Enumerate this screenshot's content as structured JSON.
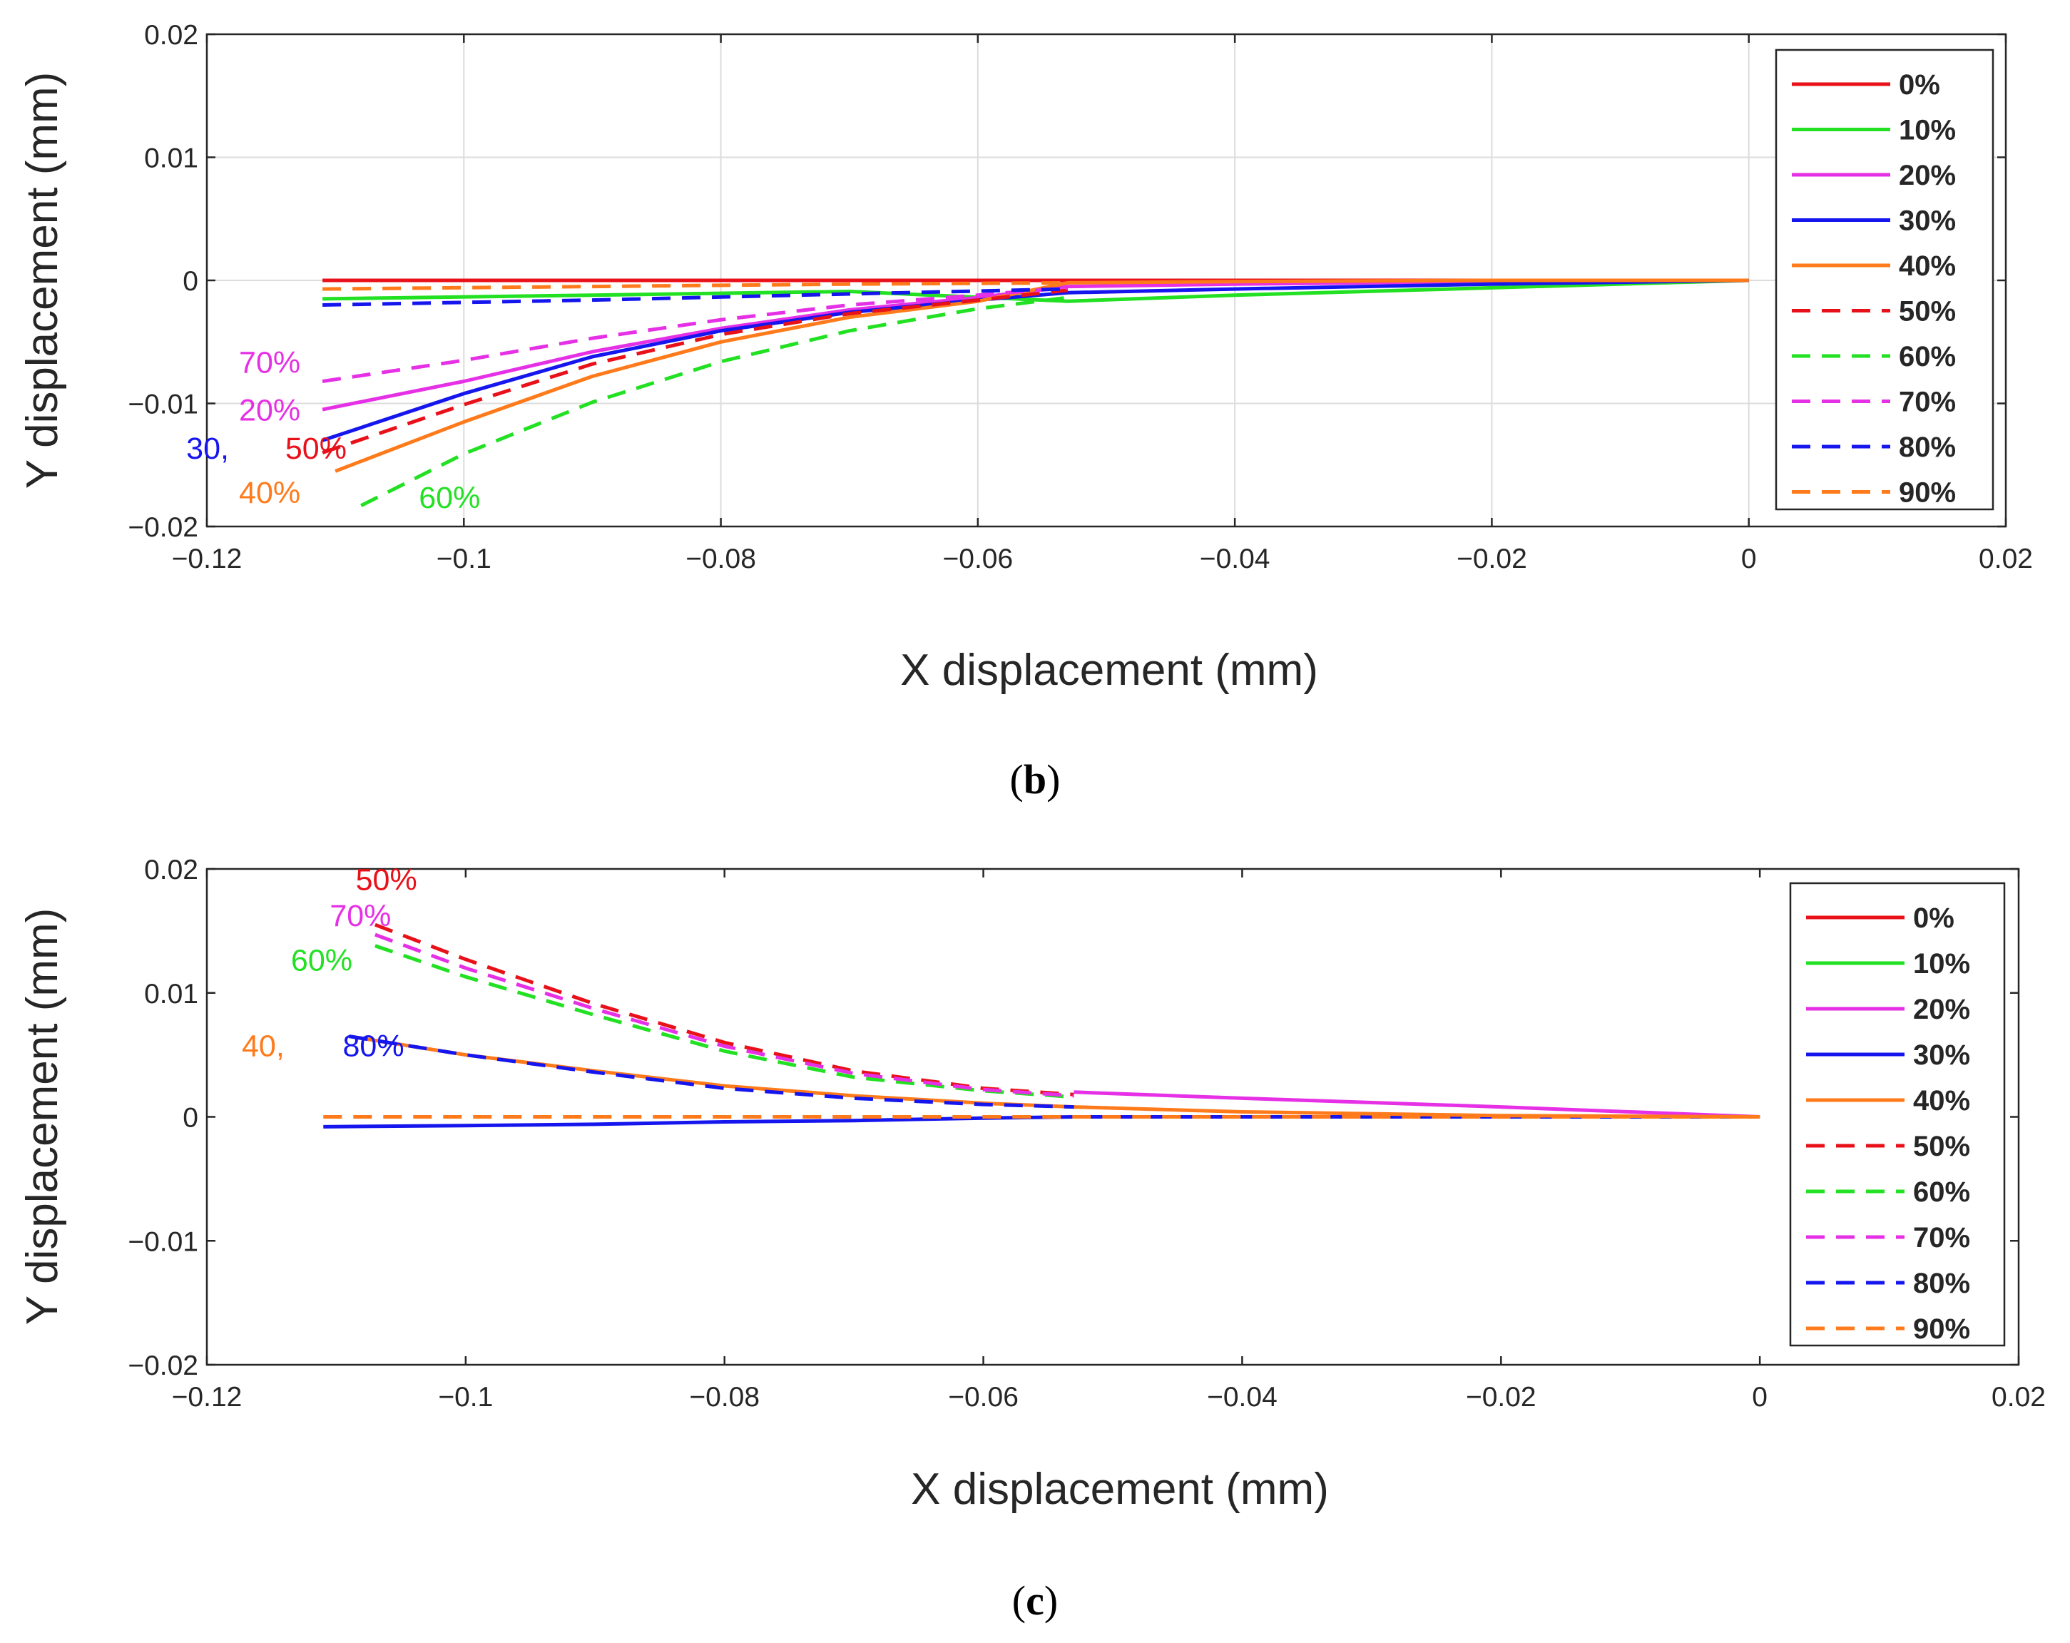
{
  "series_styles": [
    {
      "name": "0%",
      "color": "#e8111a",
      "dash": false
    },
    {
      "name": "10%",
      "color": "#22e022",
      "dash": false
    },
    {
      "name": "20%",
      "color": "#e630e6",
      "dash": false
    },
    {
      "name": "30%",
      "color": "#1515ee",
      "dash": false
    },
    {
      "name": "40%",
      "color": "#ff7a1a",
      "dash": false
    },
    {
      "name": "50%",
      "color": "#e8111a",
      "dash": true
    },
    {
      "name": "60%",
      "color": "#22e022",
      "dash": true
    },
    {
      "name": "70%",
      "color": "#e630e6",
      "dash": true
    },
    {
      "name": "80%",
      "color": "#1515ee",
      "dash": true
    },
    {
      "name": "90%",
      "color": "#ff7a1a",
      "dash": true
    }
  ],
  "chart_data": [
    {
      "id": "b",
      "type": "line",
      "caption_open": "(",
      "caption_letter": "b",
      "caption_close": ")",
      "xlabel": "X displacement (mm)",
      "ylabel": "Y displacement (mm)",
      "xlim": [
        -0.12,
        0.02
      ],
      "ylim": [
        -0.02,
        0.02
      ],
      "xticks": [
        -0.12,
        -0.1,
        -0.08,
        -0.06,
        -0.04,
        -0.02,
        0,
        0.02
      ],
      "xtick_labels": [
        "−0.12",
        "−0.1",
        "−0.08",
        "−0.06",
        "−0.04",
        "−0.02",
        "0",
        "0.02"
      ],
      "yticks": [
        -0.02,
        -0.01,
        0,
        0.01,
        0.02
      ],
      "ytick_labels": [
        "−0.02",
        "−0.01",
        "0",
        "0.01",
        "0.02"
      ],
      "grid": true,
      "legend_position": "top-right",
      "series": [
        {
          "name": "0%",
          "x": [
            -0.111,
            -0.09,
            -0.07,
            -0.053,
            -0.04,
            -0.02,
            0
          ],
          "y": [
            0.0,
            0.0,
            0.0,
            0.0,
            0.0,
            0.0,
            0.0
          ]
        },
        {
          "name": "10%",
          "x": [
            -0.111,
            -0.09,
            -0.07,
            -0.053,
            -0.04,
            -0.02,
            0
          ],
          "y": [
            -0.0015,
            -0.0012,
            -0.0009,
            -0.0017,
            -0.0012,
            -0.0006,
            0.0
          ]
        },
        {
          "name": "20%",
          "x": [
            -0.111,
            -0.1,
            -0.09,
            -0.08,
            -0.07,
            -0.06,
            -0.053,
            -0.04,
            -0.02,
            0
          ],
          "y": [
            -0.0105,
            -0.0082,
            -0.0058,
            -0.0039,
            -0.0024,
            -0.0014,
            -0.0005,
            -0.0003,
            -0.0001,
            0.0
          ]
        },
        {
          "name": "30%",
          "x": [
            -0.111,
            -0.1,
            -0.09,
            -0.08,
            -0.07,
            -0.06,
            -0.053,
            -0.04,
            -0.02,
            0
          ],
          "y": [
            -0.013,
            -0.0092,
            -0.0062,
            -0.0041,
            -0.0026,
            -0.0016,
            -0.001,
            -0.0007,
            -0.0003,
            0.0
          ]
        },
        {
          "name": "40%",
          "x": [
            -0.11,
            -0.1,
            -0.09,
            -0.08,
            -0.07,
            -0.06,
            -0.053,
            -0.04,
            -0.02,
            0
          ],
          "y": [
            -0.0155,
            -0.0115,
            -0.0078,
            -0.005,
            -0.003,
            -0.0017,
            -0.0002,
            -0.0001,
            0.0,
            0.0
          ]
        },
        {
          "name": "50%",
          "x": [
            -0.111,
            -0.1,
            -0.09,
            -0.08,
            -0.07,
            -0.06,
            -0.053
          ],
          "y": [
            -0.014,
            -0.0101,
            -0.0068,
            -0.0044,
            -0.0027,
            -0.0016,
            -0.0008
          ]
        },
        {
          "name": "60%",
          "x": [
            -0.108,
            -0.1,
            -0.09,
            -0.08,
            -0.07,
            -0.06,
            -0.053
          ],
          "y": [
            -0.0183,
            -0.0141,
            -0.0099,
            -0.0066,
            -0.0041,
            -0.0023,
            -0.0014
          ]
        },
        {
          "name": "70%",
          "x": [
            -0.111,
            -0.1,
            -0.09,
            -0.08,
            -0.07,
            -0.06,
            -0.053
          ],
          "y": [
            -0.0082,
            -0.0065,
            -0.0047,
            -0.0032,
            -0.002,
            -0.0012,
            -0.0006
          ]
        },
        {
          "name": "80%",
          "x": [
            -0.111,
            -0.09,
            -0.07,
            -0.053
          ],
          "y": [
            -0.002,
            -0.0016,
            -0.0011,
            -0.0007
          ]
        },
        {
          "name": "90%",
          "x": [
            -0.111,
            -0.09,
            -0.07,
            -0.053
          ],
          "y": [
            -0.0007,
            -0.0005,
            -0.0003,
            -0.0002
          ]
        }
      ],
      "annotations": [
        {
          "text": "70%",
          "color": "#e630e6",
          "x": -0.1175,
          "y": -0.0075
        },
        {
          "text": "20%",
          "color": "#e630e6",
          "x": -0.1175,
          "y": -0.0114
        },
        {
          "text": "30,",
          "color": "#1515ee",
          "x": -0.1216,
          "y": -0.0145
        },
        {
          "text": "50%",
          "color": "#e8111a",
          "x": -0.1139,
          "y": -0.0145
        },
        {
          "text": "40%",
          "color": "#ff7a1a",
          "x": -0.1175,
          "y": -0.0181
        },
        {
          "text": "60%",
          "color": "#22e022",
          "x": -0.1035,
          "y": -0.0185
        }
      ]
    },
    {
      "id": "c",
      "type": "line",
      "caption_open": "(",
      "caption_letter": "c",
      "caption_close": ")",
      "xlabel": "X displacement (mm)",
      "ylabel": "Y displacement (mm)",
      "xlim": [
        -0.12,
        0.02
      ],
      "ylim": [
        -0.02,
        0.02
      ],
      "xticks": [
        -0.12,
        -0.1,
        -0.08,
        -0.06,
        -0.04,
        -0.02,
        0,
        0.02
      ],
      "xtick_labels": [
        "−0.12",
        "−0.1",
        "−0.08",
        "−0.06",
        "−0.04",
        "−0.02",
        "0",
        "0.02"
      ],
      "yticks": [
        -0.02,
        -0.01,
        0,
        0.01,
        0.02
      ],
      "ytick_labels": [
        "−0.02",
        "−0.01",
        "0",
        "0.01",
        "0.02"
      ],
      "grid": false,
      "legend_position": "top-right",
      "series": [
        {
          "name": "0%",
          "x": [
            -0.053,
            -0.04,
            -0.02,
            0
          ],
          "y": [
            0.0,
            0.0,
            0.0,
            0.0
          ]
        },
        {
          "name": "10%",
          "x": [
            -0.053,
            -0.04,
            -0.02,
            0
          ],
          "y": [
            0.0,
            0.0,
            0.0,
            0.0
          ]
        },
        {
          "name": "20%",
          "x": [
            -0.053,
            -0.04,
            -0.02,
            0
          ],
          "y": [
            0.002,
            0.0015,
            0.0008,
            0.0
          ]
        },
        {
          "name": "30%",
          "x": [
            -0.111,
            -0.1,
            -0.09,
            -0.08,
            -0.07,
            -0.06,
            -0.053,
            -0.04,
            -0.02,
            0
          ],
          "y": [
            -0.0008,
            -0.0007,
            -0.0006,
            -0.0004,
            -0.0003,
            -0.0001,
            0.0,
            0.0,
            0.0,
            0.0
          ]
        },
        {
          "name": "40%",
          "x": [
            -0.109,
            -0.1,
            -0.09,
            -0.08,
            -0.07,
            -0.06,
            -0.053,
            -0.04,
            -0.02,
            0
          ],
          "y": [
            0.0065,
            0.005,
            0.0037,
            0.0025,
            0.0017,
            0.0011,
            0.0008,
            0.0004,
            0.0001,
            0.0
          ]
        },
        {
          "name": "50%",
          "x": [
            -0.107,
            -0.1,
            -0.09,
            -0.08,
            -0.07,
            -0.06,
            -0.053
          ],
          "y": [
            0.0155,
            0.0127,
            0.0091,
            0.006,
            0.0037,
            0.0023,
            0.0018
          ]
        },
        {
          "name": "60%",
          "x": [
            -0.107,
            -0.1,
            -0.09,
            -0.08,
            -0.07,
            -0.06,
            -0.053
          ],
          "y": [
            0.0138,
            0.0113,
            0.0082,
            0.0053,
            0.0032,
            0.0021,
            0.0016
          ]
        },
        {
          "name": "70%",
          "x": [
            -0.107,
            -0.1,
            -0.09,
            -0.08,
            -0.07,
            -0.06,
            -0.053
          ],
          "y": [
            0.0147,
            0.012,
            0.0087,
            0.0057,
            0.0035,
            0.0022,
            0.0017
          ]
        },
        {
          "name": "80%",
          "x": [
            -0.109,
            -0.1,
            -0.09,
            -0.08,
            -0.07,
            -0.06,
            -0.053
          ],
          "y": [
            0.0065,
            0.005,
            0.0036,
            0.0023,
            0.0015,
            0.001,
            0.0008
          ]
        },
        {
          "name": "90%",
          "x": [
            -0.111,
            -0.09,
            -0.07,
            -0.053,
            -0.04,
            -0.02,
            0
          ],
          "y": [
            0.0,
            0.0,
            0.0,
            0.0,
            0.0,
            0.0,
            0.0
          ]
        }
      ],
      "annotations": [
        {
          "text": "50%",
          "color": "#e8111a",
          "x": -0.1085,
          "y": 0.0183
        },
        {
          "text": "70%",
          "color": "#e630e6",
          "x": -0.1105,
          "y": 0.0154
        },
        {
          "text": "60%",
          "color": "#22e022",
          "x": -0.1135,
          "y": 0.0118
        },
        {
          "text": "40,",
          "color": "#ff7a1a",
          "x": -0.1173,
          "y": 0.0049
        },
        {
          "text": "80%",
          "color": "#1515ee",
          "x": -0.1095,
          "y": 0.0049
        }
      ]
    }
  ]
}
